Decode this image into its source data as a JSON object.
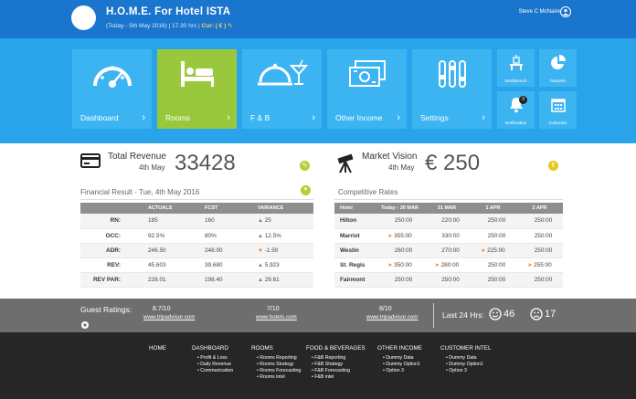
{
  "header": {
    "title": "H.O.M.E. For Hotel ISTA",
    "subtitle_pre": "(Today - 5th May 2016) | 17.30 hrs |",
    "currency": "Cur: ( € )",
    "user": "Steve C McNaire"
  },
  "tiles": [
    {
      "label": "Dashboard",
      "icon": "gauge-icon"
    },
    {
      "label": "Rooms",
      "icon": "bed-icon"
    },
    {
      "label": "F & B",
      "icon": "food-cloche-icon"
    },
    {
      "label": "Other Income",
      "icon": "money-icon"
    },
    {
      "label": "Settings",
      "icon": "sliders-icon"
    }
  ],
  "small_tiles": [
    {
      "label": "Workbench",
      "icon": "workbench-icon"
    },
    {
      "label": "Reports",
      "icon": "pie-chart-icon"
    },
    {
      "label": "Notification",
      "icon": "bell-icon",
      "badge": "3"
    },
    {
      "label": "Calendar",
      "icon": "calendar-icon"
    }
  ],
  "kpi_left": {
    "label": "Total Revenue",
    "date": "4th May",
    "value": "33428",
    "section_title": "Financial Result - Tue, 4th May 2016"
  },
  "kpi_right": {
    "label": "Market Vision",
    "date": "4th May",
    "value": "€ 250",
    "section_title": "Competitive Rates"
  },
  "financial_table": {
    "headers": [
      "",
      "ACTUALS",
      "FCST",
      "VARIANCE"
    ],
    "rows": [
      {
        "label": "RN:",
        "actual": "185",
        "fcst": "160",
        "dir": "up",
        "variance": "25"
      },
      {
        "label": "OCC:",
        "actual": "92.5%",
        "fcst": "80%",
        "dir": "up",
        "variance": "12.5%"
      },
      {
        "label": "ADR:",
        "actual": "246.50",
        "fcst": "248.00",
        "dir": "down",
        "variance": "-1.50"
      },
      {
        "label": "REV:",
        "actual": "45,603",
        "fcst": "39,680",
        "dir": "up",
        "variance": "5,923"
      },
      {
        "label": "REV PAR:",
        "actual": "228.01",
        "fcst": "198.40",
        "dir": "up",
        "variance": "29.61"
      }
    ]
  },
  "rates_table": {
    "headers": [
      "Hotel",
      "Today - 30 MAR",
      "31 MAR",
      "1 APR",
      "2 APR"
    ],
    "rows": [
      {
        "hotel": "Hilton",
        "cells": [
          {
            "v": "250:00",
            "a": false
          },
          {
            "v": "220:00",
            "a": false
          },
          {
            "v": "250:00",
            "a": false
          },
          {
            "v": "250:00",
            "a": false
          }
        ]
      },
      {
        "hotel": "Marriot",
        "cells": [
          {
            "v": "355:00",
            "a": true
          },
          {
            "v": "330:00",
            "a": false
          },
          {
            "v": "250:00",
            "a": false
          },
          {
            "v": "250:00",
            "a": false
          }
        ]
      },
      {
        "hotel": "Westin",
        "cells": [
          {
            "v": "260:00",
            "a": false
          },
          {
            "v": "270:00",
            "a": false
          },
          {
            "v": "225:00",
            "a": true
          },
          {
            "v": "250:00",
            "a": false
          }
        ]
      },
      {
        "hotel": "St. Regis",
        "cells": [
          {
            "v": "350:00",
            "a": true
          },
          {
            "v": "280:00",
            "a": true
          },
          {
            "v": "250:00",
            "a": false
          },
          {
            "v": "255:00",
            "a": true
          }
        ]
      },
      {
        "hotel": "Fairmont",
        "cells": [
          {
            "v": "250:00",
            "a": false
          },
          {
            "v": "250:00",
            "a": false
          },
          {
            "v": "250:00",
            "a": false
          },
          {
            "v": "250:00",
            "a": false
          }
        ]
      }
    ]
  },
  "ratings": {
    "title": "Guest Ratings:",
    "items": [
      {
        "score": "8.7/10",
        "site": "www.tripadvisor.com"
      },
      {
        "score": "7/10",
        "site": "www.hotels.com"
      },
      {
        "score": "8/10",
        "site": "www.tripadvisor.com"
      }
    ],
    "last24_label": "Last 24 Hrs:",
    "happy_count": "46",
    "sad_count": "17"
  },
  "footer": {
    "columns": [
      {
        "title": "HOME",
        "items": []
      },
      {
        "title": "DASHBOARD",
        "items": [
          "Profit & Loss",
          "Daily Revenue",
          "Communication"
        ]
      },
      {
        "title": "ROOMS",
        "items": [
          "Rooms Reporting",
          "Rooms Strategy",
          "Rooms Forecasting",
          "Rooms intel"
        ]
      },
      {
        "title": "FOOD & BEVERAGES",
        "items": [
          "F&B Reporting",
          "F&B Strategy",
          "F&B Forecasting",
          "F&B intel"
        ]
      },
      {
        "title": "OTHER INCOME",
        "items": [
          "Dummy Data",
          "Dummy Option1",
          "Option 3"
        ]
      },
      {
        "title": "CUSTOMER INTEL",
        "items": [
          "Dummy Data",
          "Dummy Option1",
          "Option 3"
        ]
      }
    ]
  },
  "colors": {
    "header_bg": "#1a75ce",
    "band_bg": "#29a4ea",
    "tile_bg": "#3cb4f2",
    "active_tile": "#9ac83c",
    "ratings_bg": "#6e6e6e",
    "footer_bg": "#262626"
  }
}
